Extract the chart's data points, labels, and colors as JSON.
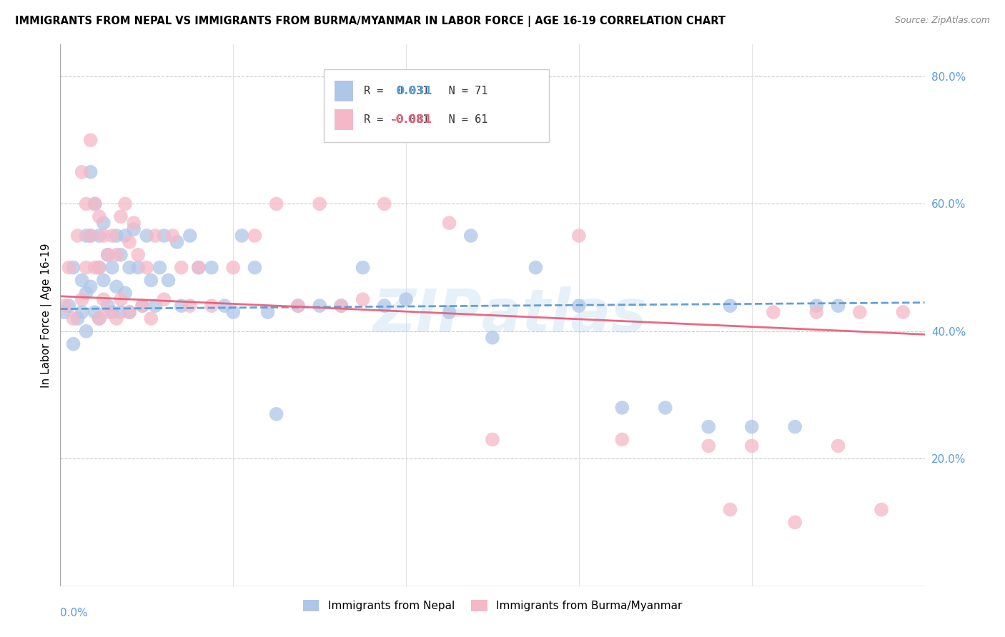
{
  "title": "IMMIGRANTS FROM NEPAL VS IMMIGRANTS FROM BURMA/MYANMAR IN LABOR FORCE | AGE 16-19 CORRELATION CHART",
  "source": "Source: ZipAtlas.com",
  "ylabel": "In Labor Force | Age 16-19",
  "x_min": 0.0,
  "x_max": 0.2,
  "y_min": 0.0,
  "y_max": 0.85,
  "nepal_R": 0.031,
  "nepal_N": 71,
  "burma_R": -0.081,
  "burma_N": 61,
  "nepal_color": "#aec6e8",
  "burma_color": "#f5b8c8",
  "nepal_line_color": "#5b9bd5",
  "burma_line_color": "#e8607a",
  "nepal_trend_y0": 0.435,
  "nepal_trend_y1": 0.445,
  "burma_trend_y0": 0.455,
  "burma_trend_y1": 0.395,
  "nepal_points_x": [
    0.001,
    0.002,
    0.003,
    0.003,
    0.004,
    0.005,
    0.005,
    0.006,
    0.006,
    0.006,
    0.007,
    0.007,
    0.007,
    0.008,
    0.008,
    0.009,
    0.009,
    0.009,
    0.01,
    0.01,
    0.011,
    0.011,
    0.012,
    0.012,
    0.013,
    0.013,
    0.014,
    0.014,
    0.015,
    0.015,
    0.016,
    0.016,
    0.017,
    0.018,
    0.019,
    0.02,
    0.021,
    0.022,
    0.023,
    0.024,
    0.025,
    0.027,
    0.028,
    0.03,
    0.032,
    0.035,
    0.038,
    0.04,
    0.042,
    0.045,
    0.048,
    0.05,
    0.055,
    0.06,
    0.065,
    0.07,
    0.075,
    0.08,
    0.09,
    0.095,
    0.1,
    0.11,
    0.12,
    0.13,
    0.14,
    0.15,
    0.155,
    0.16,
    0.17,
    0.175,
    0.18
  ],
  "nepal_points_y": [
    0.43,
    0.44,
    0.5,
    0.38,
    0.42,
    0.48,
    0.43,
    0.55,
    0.46,
    0.4,
    0.65,
    0.55,
    0.47,
    0.6,
    0.43,
    0.55,
    0.5,
    0.42,
    0.57,
    0.48,
    0.52,
    0.44,
    0.5,
    0.43,
    0.55,
    0.47,
    0.52,
    0.43,
    0.55,
    0.46,
    0.5,
    0.43,
    0.56,
    0.5,
    0.44,
    0.55,
    0.48,
    0.44,
    0.5,
    0.55,
    0.48,
    0.54,
    0.44,
    0.55,
    0.5,
    0.5,
    0.44,
    0.43,
    0.55,
    0.5,
    0.43,
    0.27,
    0.44,
    0.44,
    0.44,
    0.5,
    0.44,
    0.45,
    0.43,
    0.55,
    0.39,
    0.5,
    0.44,
    0.28,
    0.28,
    0.25,
    0.44,
    0.25,
    0.25,
    0.44,
    0.44
  ],
  "burma_points_x": [
    0.001,
    0.002,
    0.003,
    0.004,
    0.005,
    0.005,
    0.006,
    0.006,
    0.007,
    0.007,
    0.008,
    0.008,
    0.009,
    0.009,
    0.009,
    0.01,
    0.01,
    0.011,
    0.011,
    0.012,
    0.013,
    0.013,
    0.014,
    0.014,
    0.015,
    0.016,
    0.016,
    0.017,
    0.018,
    0.019,
    0.02,
    0.021,
    0.022,
    0.024,
    0.026,
    0.028,
    0.03,
    0.032,
    0.035,
    0.04,
    0.045,
    0.05,
    0.055,
    0.06,
    0.065,
    0.07,
    0.075,
    0.09,
    0.1,
    0.12,
    0.13,
    0.15,
    0.155,
    0.16,
    0.165,
    0.17,
    0.175,
    0.18,
    0.185,
    0.19,
    0.195
  ],
  "burma_points_y": [
    0.44,
    0.5,
    0.42,
    0.55,
    0.65,
    0.45,
    0.6,
    0.5,
    0.7,
    0.55,
    0.6,
    0.5,
    0.58,
    0.5,
    0.42,
    0.55,
    0.45,
    0.52,
    0.43,
    0.55,
    0.52,
    0.42,
    0.58,
    0.45,
    0.6,
    0.54,
    0.43,
    0.57,
    0.52,
    0.44,
    0.5,
    0.42,
    0.55,
    0.45,
    0.55,
    0.5,
    0.44,
    0.5,
    0.44,
    0.5,
    0.55,
    0.6,
    0.44,
    0.6,
    0.44,
    0.45,
    0.6,
    0.57,
    0.23,
    0.55,
    0.23,
    0.22,
    0.12,
    0.22,
    0.43,
    0.1,
    0.43,
    0.22,
    0.43,
    0.12,
    0.43
  ]
}
